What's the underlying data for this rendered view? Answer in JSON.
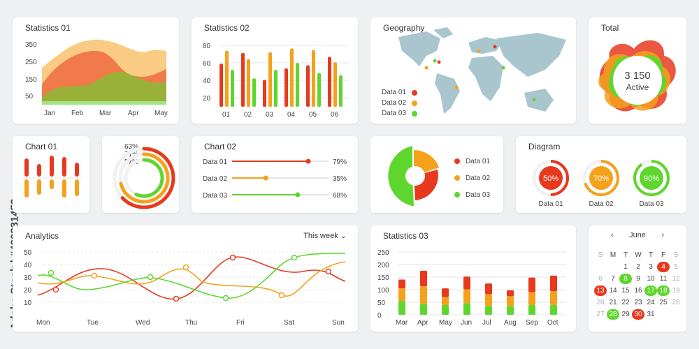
{
  "colors": {
    "red": "#e8391e",
    "orange": "#f5a11c",
    "green": "#5fd62e",
    "grid": "#e6e6e6",
    "map": "#a9c6cf"
  },
  "side_label": "Adobe Stock | #436831453",
  "stats01": {
    "title": "Statistics 01",
    "yticks": [
      "350",
      "250",
      "150",
      "50"
    ],
    "xticks": [
      "Jan",
      "Feb",
      "Mar",
      "Apr",
      "May"
    ]
  },
  "stats02": {
    "title": "Statistics 02",
    "yticks": [
      "80",
      "60",
      "40",
      "20"
    ],
    "xticks": [
      "01",
      "02",
      "03",
      "04",
      "05",
      "06"
    ],
    "values": [
      [
        56,
        73,
        48
      ],
      [
        70,
        62,
        37
      ],
      [
        35,
        71,
        48
      ],
      [
        50,
        76,
        57
      ],
      [
        54,
        74,
        44
      ],
      [
        65,
        58,
        41
      ]
    ]
  },
  "geo": {
    "title": "Geography",
    "legend": [
      "Data 01",
      "Data 02",
      "Data 03"
    ]
  },
  "total": {
    "title": "Total",
    "value": "3 150",
    "label": "Active"
  },
  "chart01": {
    "title": "Chart 01"
  },
  "rings": {
    "labels": [
      "63%",
      "71%",
      "57%"
    ],
    "values": [
      63,
      71,
      57
    ]
  },
  "chart02": {
    "title": "Chart 02",
    "rows": [
      {
        "label": "Data 01",
        "value": 79,
        "text": "79%"
      },
      {
        "label": "Data 02",
        "value": 35,
        "text": "35%"
      },
      {
        "label": "Data 03",
        "value": 68,
        "text": "68%"
      }
    ]
  },
  "pie": {
    "legend": [
      "Data 01",
      "Data 02",
      "Data 03"
    ]
  },
  "diagram": {
    "title": "Diagram",
    "items": [
      {
        "pct": "50%",
        "value": 50,
        "label": "Data 01"
      },
      {
        "pct": "70%",
        "value": 70,
        "label": "Data 02"
      },
      {
        "pct": "90%",
        "value": 90,
        "label": "Data 03"
      }
    ]
  },
  "analytics": {
    "title": "Analytics",
    "range": "This week",
    "yticks": [
      "50",
      "40",
      "30",
      "20",
      "10"
    ],
    "xticks": [
      "Mon",
      "Tue",
      "Wed",
      "Thu",
      "Fri",
      "Sat",
      "Sun"
    ]
  },
  "stats03": {
    "title": "Statistics 03",
    "yticks": [
      "250",
      "200",
      "150",
      "100",
      "50",
      "0"
    ],
    "xticks": [
      "Mar",
      "Apr",
      "May",
      "Jun",
      "Jul",
      "Aug",
      "Sep",
      "Oct"
    ],
    "values": [
      [
        45,
        65,
        70
      ],
      [
        80,
        90,
        55
      ],
      [
        45,
        40,
        50
      ],
      [
        65,
        70,
        60
      ],
      [
        55,
        60,
        45
      ],
      [
        30,
        50,
        45
      ],
      [
        75,
        65,
        50
      ],
      [
        80,
        70,
        50
      ]
    ]
  },
  "calendar": {
    "month": "June",
    "prev": "‹",
    "next": "›",
    "weekdays": [
      "S",
      "M",
      "T",
      "W",
      "T",
      "F",
      "S"
    ],
    "rows": [
      [
        "",
        "",
        "1",
        "2",
        "3",
        "4",
        "5"
      ],
      [
        "6",
        "7",
        "8",
        "9",
        "10",
        "11",
        "12"
      ],
      [
        "13",
        "14",
        "15",
        "16",
        "17",
        "18",
        "19"
      ],
      [
        "20",
        "21",
        "22",
        "23",
        "24",
        "25",
        "26"
      ],
      [
        "27",
        "28",
        "29",
        "30",
        "31",
        "",
        ""
      ]
    ]
  },
  "chart_data": [
    {
      "type": "bar",
      "title": "Statistics 02",
      "categories": [
        "01",
        "02",
        "03",
        "04",
        "05",
        "06"
      ],
      "series": [
        {
          "values": [
            56,
            70,
            35,
            50,
            54,
            65
          ]
        },
        {
          "values": [
            73,
            62,
            71,
            76,
            74,
            58
          ]
        },
        {
          "values": [
            48,
            37,
            48,
            57,
            44,
            41
          ]
        }
      ],
      "ylim": [
        0,
        80
      ]
    },
    {
      "type": "bar",
      "title": "Statistics 03",
      "categories": [
        "Mar",
        "Apr",
        "May",
        "Jun",
        "Jul",
        "Aug",
        "Sep",
        "Oct"
      ],
      "series": [
        {
          "values": [
            45,
            80,
            45,
            65,
            55,
            30,
            75,
            80
          ]
        },
        {
          "values": [
            65,
            90,
            40,
            70,
            60,
            50,
            65,
            70
          ]
        },
        {
          "values": [
            70,
            55,
            50,
            60,
            45,
            45,
            50,
            50
          ]
        }
      ],
      "ylim": [
        0,
        250
      ]
    }
  ]
}
